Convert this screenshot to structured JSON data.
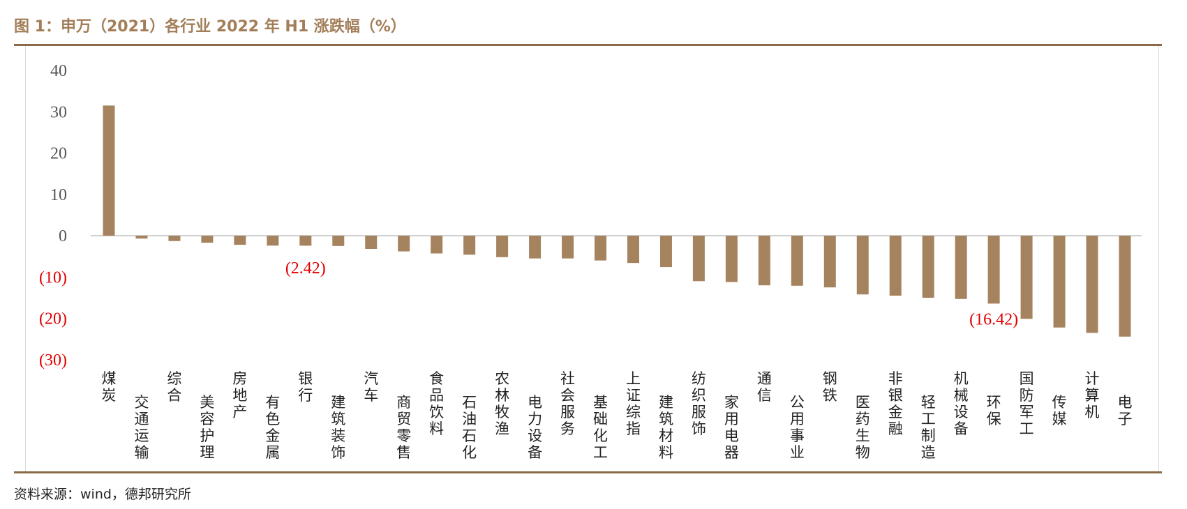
{
  "header": {
    "title": "图 1：申万（2021）各行业 2022 年 H1 涨跌幅（%）"
  },
  "footer": {
    "source": "资料来源：wind，德邦研究所"
  },
  "chart_data": {
    "type": "bar",
    "title": "图 1：申万（2021）各行业 2022 年 H1 涨跌幅（%）",
    "xlabel": "",
    "ylabel": "",
    "ylim": [
      -30,
      40
    ],
    "yticks": [
      {
        "value": 40,
        "label": "40"
      },
      {
        "value": 30,
        "label": "30"
      },
      {
        "value": 20,
        "label": "20"
      },
      {
        "value": 10,
        "label": "10"
      },
      {
        "value": 0,
        "label": "0"
      },
      {
        "value": -10,
        "label": "(10)"
      },
      {
        "value": -20,
        "label": "(20)"
      },
      {
        "value": -30,
        "label": "(30)"
      }
    ],
    "grid": false,
    "legend": "none",
    "bar_color": "#a6835f",
    "negative_tick_color": "#e00000",
    "positive_tick_color": "#555555",
    "categories": [
      "煤炭",
      "交通运输",
      "综合",
      "美容护理",
      "房地产",
      "有色金属",
      "银行",
      "建筑装饰",
      "汽车",
      "商贸零售",
      "食品饮料",
      "石油石化",
      "农林牧渔",
      "电力设备",
      "社会服务",
      "基础化工",
      "上证综指",
      "建筑材料",
      "纺织服饰",
      "家用电器",
      "通信",
      "公用事业",
      "钢铁",
      "医药生物",
      "非银金融",
      "轻工制造",
      "机械设备",
      "环保",
      "国防军工",
      "传媒",
      "计算机",
      "电子"
    ],
    "values": [
      31.5,
      -0.7,
      -1.3,
      -1.7,
      -2.2,
      -2.4,
      -2.42,
      -2.5,
      -3.2,
      -3.8,
      -4.3,
      -4.6,
      -5.2,
      -5.5,
      -5.5,
      -6.0,
      -6.6,
      -7.6,
      -11.0,
      -11.2,
      -12.0,
      -12.1,
      -12.5,
      -14.2,
      -14.5,
      -15.0,
      -15.3,
      -16.42,
      -20.1,
      -22.2,
      -23.5,
      -24.4
    ],
    "annotations": [
      {
        "category": "银行",
        "text": "(2.42)"
      },
      {
        "category": "环保",
        "text": "(16.42)"
      }
    ]
  }
}
